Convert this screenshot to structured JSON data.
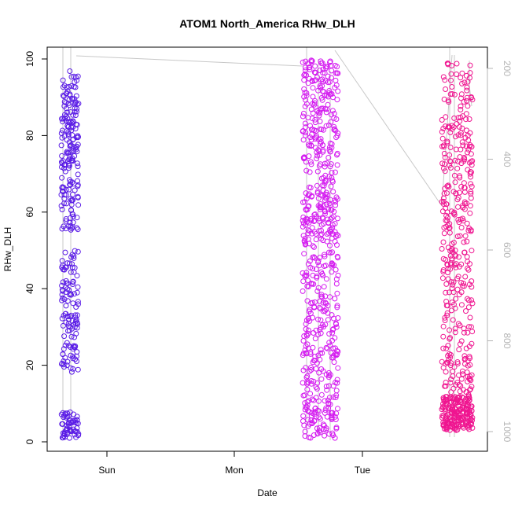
{
  "chart_data": {
    "type": "scatter",
    "title": "ATOM1 North_America RHw_DLH",
    "xlabel": "Date",
    "ylabel": "RHw_DLH",
    "x_ticks": [
      "Sun",
      "Mon",
      "Tue"
    ],
    "y_ticks": [
      "0",
      "20",
      "40",
      "60",
      "80",
      "100"
    ],
    "y_range": [
      0,
      100
    ],
    "secondary_y_ticks": [
      "200",
      "400",
      "600",
      "800",
      "1000"
    ],
    "secondary_y_range": [
      1000,
      170
    ],
    "secondary_y_reversed": true,
    "grid": false,
    "legend": "none",
    "x_range_hours": [
      -42,
      162
    ],
    "clusters": [
      {
        "x_range_hours": [
          -34,
          -27
        ],
        "color": "#5b1de6",
        "y_range": [
          1,
          97
        ]
      },
      {
        "x_range_hours": [
          84,
          98
        ],
        "color": "#d41cf0",
        "y_range": [
          1,
          100
        ]
      },
      {
        "x_range_hours": [
          136,
          148
        ],
        "color": "#ef1590",
        "y_range": [
          3,
          99
        ]
      }
    ],
    "secondary_series_color": "#c8c8c8",
    "axis_color": "#000000",
    "secondary_axis_color": "#b4b4b4"
  }
}
